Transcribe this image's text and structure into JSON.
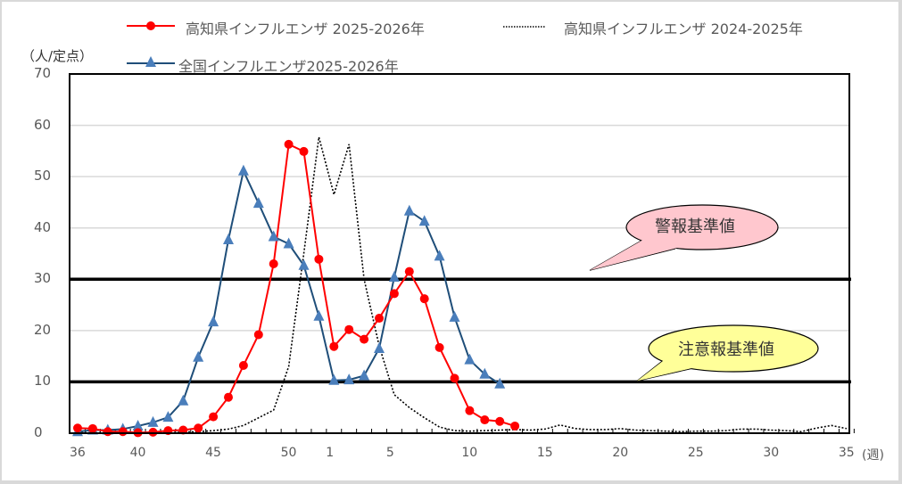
{
  "chart_data": {
    "type": "line",
    "title": "",
    "ylabel": "（人/定点）",
    "xlabel": "(週)",
    "ylim": [
      0,
      70
    ],
    "yticks": [
      0,
      10,
      20,
      30,
      40,
      50,
      60,
      70
    ],
    "xtick_labels": [
      "36",
      "40",
      "45",
      "50",
      "1",
      "5",
      "10",
      "15",
      "20",
      "25",
      "30",
      "35"
    ],
    "x": [
      "36",
      "37",
      "38",
      "39",
      "40",
      "41",
      "42",
      "43",
      "44",
      "45",
      "46",
      "47",
      "48",
      "49",
      "50",
      "51",
      "52",
      "1",
      "2",
      "3",
      "4",
      "5",
      "6",
      "7",
      "8",
      "9",
      "10",
      "11",
      "12",
      "13",
      "14",
      "15",
      "16",
      "17",
      "18",
      "19",
      "20",
      "21",
      "22",
      "23",
      "24",
      "25",
      "26",
      "27",
      "28",
      "29",
      "30",
      "31",
      "32",
      "33",
      "34",
      "35"
    ],
    "series": [
      {
        "name": "高知県インフルエンザ 2025-2026年",
        "color": "#ff0000",
        "marker": "circle",
        "values": [
          1.0,
          0.9,
          0.3,
          0.3,
          0.1,
          0.2,
          0.5,
          0.6,
          1.0,
          3.2,
          7.0,
          13.2,
          19.2,
          33.0,
          56.3,
          54.9,
          33.9,
          16.9,
          20.2,
          18.3,
          22.4,
          27.2,
          31.5,
          26.2,
          16.7,
          10.7,
          4.4,
          2.6,
          2.3,
          1.4
        ]
      },
      {
        "name": "高知県インフルエンザ 2024-2025年",
        "color": "#000000",
        "style": "dotted",
        "values": [
          0.1,
          0.1,
          0.1,
          0.1,
          0.1,
          0.1,
          0.1,
          0.2,
          0.3,
          0.5,
          0.8,
          1.5,
          3.0,
          4.5,
          13.0,
          35.0,
          57.7,
          46.5,
          56.3,
          30.0,
          17.0,
          7.5,
          5.0,
          3.0,
          1.2,
          0.5,
          0.4,
          0.5,
          0.6,
          0.7,
          0.6,
          0.8,
          1.6,
          0.9,
          0.7,
          0.7,
          0.9,
          0.6,
          0.5,
          0.4,
          0.3,
          0.4,
          0.4,
          0.5,
          0.8,
          0.8,
          0.6,
          0.5,
          0.3,
          1.0,
          1.5,
          0.9
        ]
      },
      {
        "name": "全国インフルエンザ2025-2026年",
        "color": "#1f4e79",
        "marker": "triangle",
        "marker_color": "#4a7ebb",
        "values": [
          0.3,
          0.6,
          0.6,
          0.8,
          1.4,
          2.1,
          3.1,
          6.3,
          14.8,
          21.7,
          37.7,
          51.1,
          44.8,
          38.3,
          36.9,
          32.7,
          22.8,
          10.3,
          10.4,
          11.2,
          16.5,
          30.4,
          43.3,
          41.3,
          34.5,
          22.6,
          14.3,
          11.5,
          9.6
        ]
      }
    ],
    "reference_lines": [
      {
        "label": "警報基準値",
        "value": 30,
        "callout_color": "#ffc7ce"
      },
      {
        "label": "注意報基準値",
        "value": 10,
        "callout_color": "#ffff99"
      }
    ],
    "grid": true,
    "legend_position": "top"
  },
  "legend": {
    "kochi_2526": "高知県インフルエンザ 2025-2026年",
    "kochi_2425": "高知県インフルエンザ 2024-2025年",
    "national_2526": "全国インフルエンザ2025-2026年"
  },
  "axis": {
    "y_unit": "（人/定点）",
    "x_unit": "(週)"
  },
  "callouts": {
    "warning": "警報基準値",
    "advisory": "注意報基準値"
  }
}
